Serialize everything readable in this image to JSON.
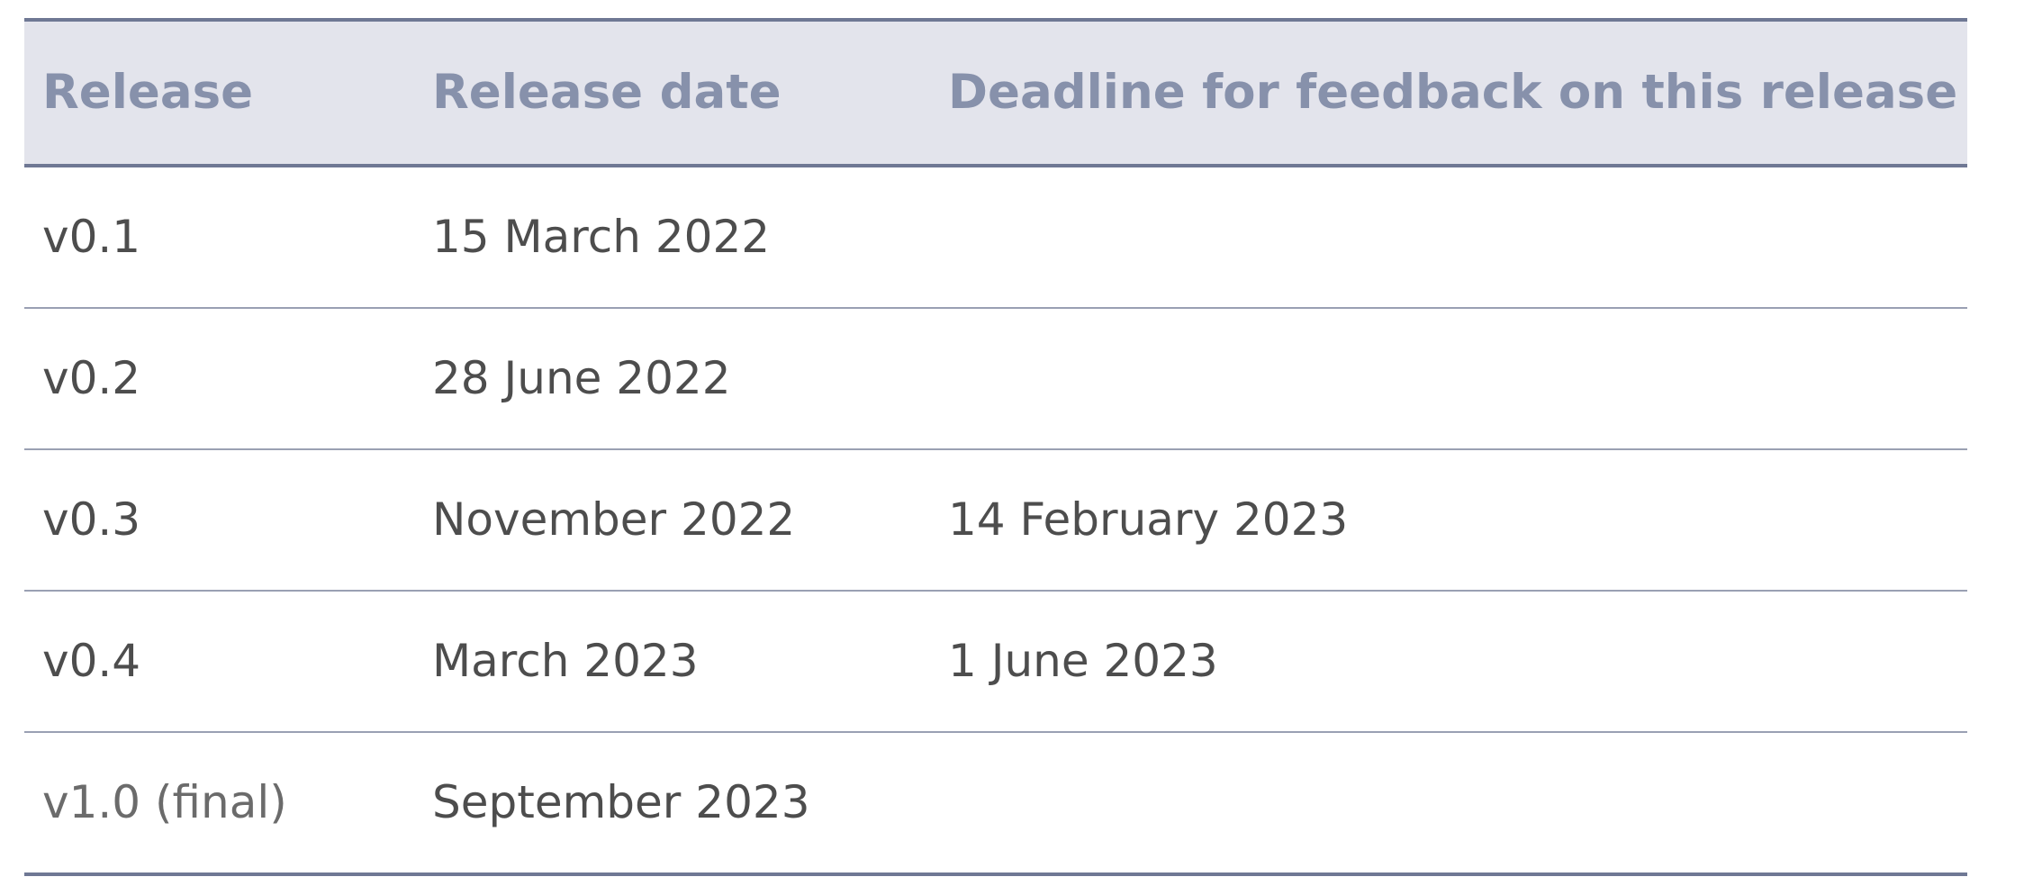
{
  "table": {
    "headers": [
      "Release",
      "Release date",
      "Deadline for feedback on this release"
    ],
    "rows": [
      [
        "v0.1",
        "15 March 2022",
        ""
      ],
      [
        "v0.2",
        "28 June 2022",
        ""
      ],
      [
        "v0.3",
        "November 2022",
        "14 February 2023"
      ],
      [
        "v0.4",
        "March 2023",
        "1 June 2023"
      ],
      [
        "v1.0 (final)",
        "September 2023",
        ""
      ]
    ]
  },
  "colors": {
    "header_background": "#e3e4ec",
    "header_text": "#8791ab",
    "rule": "#6f7894",
    "body_text": "#4d4d4d"
  }
}
